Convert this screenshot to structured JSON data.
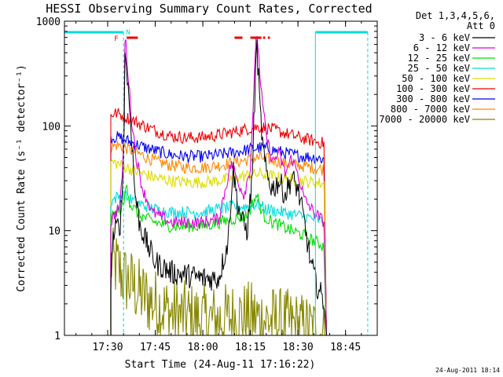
{
  "chart_data": {
    "type": "line",
    "title": "HESSI Observing Summary Count Rates, Corrected",
    "xlabel": "Start Time (24-Aug-11 17:16:22)",
    "ylabel": "Corrected Count Rate (s⁻¹ detector⁻¹)",
    "y_scale": "log",
    "ylim": [
      1,
      1000
    ],
    "xlim": [
      "17:16:22",
      "18:55:00"
    ],
    "x_ticks": [
      "17:30",
      "17:45",
      "18:00",
      "18:15",
      "18:30",
      "18:45"
    ],
    "y_ticks": [
      "1",
      "10",
      "100",
      "1000"
    ],
    "grid": false,
    "legend_position": "right",
    "legend_header": [
      "Det 1,3,4,5,6,",
      "Att 0"
    ],
    "timestamp": "24-Aug-2011 18:14",
    "markers": {
      "flare": "F",
      "night": "N"
    },
    "data_start": "17:31:00",
    "data_end": "18:39:00",
    "series": [
      {
        "name": "3 - 6 keV",
        "color": "#000000",
        "points": [
          [
            "17:31:00",
            3
          ],
          [
            "17:31:30",
            8
          ],
          [
            "17:32:30",
            10
          ],
          [
            "17:34:00",
            12
          ],
          [
            "17:35:00",
            40
          ],
          [
            "17:35:30",
            550
          ],
          [
            "17:36:30",
            220
          ],
          [
            "17:37:30",
            90
          ],
          [
            "17:38:30",
            25
          ],
          [
            "17:40:00",
            12
          ],
          [
            "17:42:00",
            8
          ],
          [
            "17:45:00",
            5
          ],
          [
            "17:50:00",
            4
          ],
          [
            "18:00:00",
            3.5
          ],
          [
            "18:05:00",
            3.5
          ],
          [
            "18:08:00",
            8
          ],
          [
            "18:09:30",
            40
          ],
          [
            "18:11:00",
            18
          ],
          [
            "18:12:30",
            12
          ],
          [
            "18:14:00",
            10
          ],
          [
            "18:15:30",
            30
          ],
          [
            "18:17:00",
            650
          ],
          [
            "18:18:00",
            150
          ],
          [
            "18:19:00",
            60
          ],
          [
            "18:20:00",
            35
          ],
          [
            "18:22:00",
            25
          ],
          [
            "18:24:00",
            30
          ],
          [
            "18:26:00",
            22
          ],
          [
            "18:28:00",
            32
          ],
          [
            "18:30:00",
            25
          ],
          [
            "18:32:00",
            12
          ],
          [
            "18:34:00",
            5
          ],
          [
            "18:36:00",
            3
          ],
          [
            "18:38:30",
            2
          ]
        ]
      },
      {
        "name": "6 - 12 keV",
        "color": "#dd00dd",
        "points": [
          [
            "17:31:00",
            12
          ],
          [
            "17:32:00",
            14
          ],
          [
            "17:34:00",
            18
          ],
          [
            "17:35:00",
            60
          ],
          [
            "17:35:30",
            780
          ],
          [
            "17:36:30",
            300
          ],
          [
            "17:37:30",
            120
          ],
          [
            "17:39:00",
            50
          ],
          [
            "17:41:00",
            25
          ],
          [
            "17:44:00",
            15
          ],
          [
            "17:50:00",
            12
          ],
          [
            "18:00:00",
            12
          ],
          [
            "18:05:00",
            13
          ],
          [
            "18:09:00",
            45
          ],
          [
            "18:11:00",
            30
          ],
          [
            "18:13:00",
            22
          ],
          [
            "18:15:00",
            40
          ],
          [
            "18:17:00",
            850
          ],
          [
            "18:18:30",
            200
          ],
          [
            "18:20:00",
            80
          ],
          [
            "18:22:00",
            45
          ],
          [
            "18:24:00",
            55
          ],
          [
            "18:26:00",
            35
          ],
          [
            "18:28:00",
            50
          ],
          [
            "18:30:00",
            35
          ],
          [
            "18:32:00",
            20
          ],
          [
            "18:35:00",
            15
          ],
          [
            "18:38:30",
            12
          ]
        ]
      },
      {
        "name": "12 - 25 keV",
        "color": "#00dd00",
        "points": [
          [
            "17:31:00",
            13
          ],
          [
            "17:33:00",
            15
          ],
          [
            "17:35:00",
            17
          ],
          [
            "17:36:00",
            30
          ],
          [
            "17:37:00",
            18
          ],
          [
            "17:40:00",
            14
          ],
          [
            "17:45:00",
            12
          ],
          [
            "17:50:00",
            11
          ],
          [
            "17:55:00",
            11
          ],
          [
            "18:00:00",
            11
          ],
          [
            "18:05:00",
            12
          ],
          [
            "18:10:00",
            13
          ],
          [
            "18:14:00",
            14
          ],
          [
            "18:17:00",
            22
          ],
          [
            "18:19:00",
            14
          ],
          [
            "18:22:00",
            12
          ],
          [
            "18:25:00",
            11
          ],
          [
            "18:28:00",
            10
          ],
          [
            "18:32:00",
            9
          ],
          [
            "18:35:00",
            8
          ],
          [
            "18:38:30",
            7
          ]
        ]
      },
      {
        "name": "25 - 50 keV",
        "color": "#00dddd",
        "points": [
          [
            "17:31:00",
            19
          ],
          [
            "17:33:00",
            21
          ],
          [
            "17:35:00",
            22
          ],
          [
            "17:37:00",
            20
          ],
          [
            "17:40:00",
            18
          ],
          [
            "17:45:00",
            16
          ],
          [
            "17:50:00",
            15
          ],
          [
            "17:55:00",
            15
          ],
          [
            "18:00:00",
            15
          ],
          [
            "18:05:00",
            16
          ],
          [
            "18:10:00",
            17
          ],
          [
            "18:15:00",
            17
          ],
          [
            "18:17:00",
            18
          ],
          [
            "18:20:00",
            16
          ],
          [
            "18:25:00",
            15
          ],
          [
            "18:30:00",
            14
          ],
          [
            "18:35:00",
            13
          ],
          [
            "18:38:30",
            12
          ]
        ]
      },
      {
        "name": "50 - 100 keV",
        "color": "#dddd00",
        "points": [
          [
            "17:31:00",
            45
          ],
          [
            "17:33:00",
            44
          ],
          [
            "17:36:00",
            40
          ],
          [
            "17:40:00",
            36
          ],
          [
            "17:45:00",
            32
          ],
          [
            "17:50:00",
            30
          ],
          [
            "17:55:00",
            29
          ],
          [
            "18:00:00",
            29
          ],
          [
            "18:05:00",
            30
          ],
          [
            "18:10:00",
            32
          ],
          [
            "18:15:00",
            34
          ],
          [
            "18:18:00",
            35
          ],
          [
            "18:22:00",
            33
          ],
          [
            "18:26:00",
            31
          ],
          [
            "18:30:00",
            30
          ],
          [
            "18:35:00",
            29
          ],
          [
            "18:38:30",
            28
          ]
        ]
      },
      {
        "name": "100 - 300 keV",
        "color": "#ee0000",
        "points": [
          [
            "17:31:00",
            130
          ],
          [
            "17:33:00",
            132
          ],
          [
            "17:35:00",
            125
          ],
          [
            "17:40:00",
            105
          ],
          [
            "17:45:00",
            90
          ],
          [
            "17:50:00",
            80
          ],
          [
            "17:55:00",
            77
          ],
          [
            "18:00:00",
            78
          ],
          [
            "18:05:00",
            82
          ],
          [
            "18:10:00",
            88
          ],
          [
            "18:15:00",
            95
          ],
          [
            "18:18:00",
            98
          ],
          [
            "18:22:00",
            93
          ],
          [
            "18:26:00",
            85
          ],
          [
            "18:30:00",
            78
          ],
          [
            "18:35:00",
            72
          ],
          [
            "18:38:30",
            68
          ]
        ]
      },
      {
        "name": "300 - 800 keV",
        "color": "#0000ee",
        "points": [
          [
            "17:31:00",
            78
          ],
          [
            "17:33:00",
            78
          ],
          [
            "17:35:00",
            75
          ],
          [
            "17:40:00",
            65
          ],
          [
            "17:45:00",
            58
          ],
          [
            "17:50:00",
            53
          ],
          [
            "17:55:00",
            51
          ],
          [
            "18:00:00",
            51
          ],
          [
            "18:05:00",
            53
          ],
          [
            "18:10:00",
            56
          ],
          [
            "18:15:00",
            60
          ],
          [
            "18:18:00",
            62
          ],
          [
            "18:22:00",
            59
          ],
          [
            "18:26:00",
            55
          ],
          [
            "18:30:00",
            52
          ],
          [
            "18:35:00",
            50
          ],
          [
            "18:38:30",
            48
          ]
        ]
      },
      {
        "name": "800 - 7000 keV",
        "color": "#ff8800",
        "points": [
          [
            "17:31:00",
            62
          ],
          [
            "17:33:00",
            66
          ],
          [
            "17:35:00",
            63
          ],
          [
            "17:40:00",
            54
          ],
          [
            "17:45:00",
            46
          ],
          [
            "17:50:00",
            42
          ],
          [
            "17:55:00",
            40
          ],
          [
            "18:00:00",
            40
          ],
          [
            "18:05:00",
            42
          ],
          [
            "18:10:00",
            45
          ],
          [
            "18:15:00",
            48
          ],
          [
            "18:18:00",
            50
          ],
          [
            "18:22:00",
            47
          ],
          [
            "18:26:00",
            44
          ],
          [
            "18:30:00",
            42
          ],
          [
            "18:35:00",
            40
          ],
          [
            "18:38:30",
            38
          ]
        ]
      },
      {
        "name": "7000 - 20000 keV",
        "color": "#888800",
        "points": [
          [
            "17:31:00",
            5
          ],
          [
            "17:33:00",
            4.5
          ],
          [
            "17:35:00",
            3.5
          ],
          [
            "17:38:00",
            3
          ],
          [
            "17:40:00",
            2.5
          ],
          [
            "17:45:00",
            2
          ],
          [
            "17:50:00",
            1.6
          ],
          [
            "17:55:00",
            1.5
          ],
          [
            "18:00:00",
            1.4
          ],
          [
            "18:05:00",
            1.4
          ],
          [
            "18:10:00",
            1.5
          ],
          [
            "18:15:00",
            1.5
          ],
          [
            "18:20:00",
            1.4
          ],
          [
            "18:25:00",
            1.3
          ],
          [
            "18:30:00",
            1.2
          ],
          [
            "18:35:00",
            1.1
          ],
          [
            "18:38:30",
            1.0
          ]
        ]
      }
    ]
  }
}
